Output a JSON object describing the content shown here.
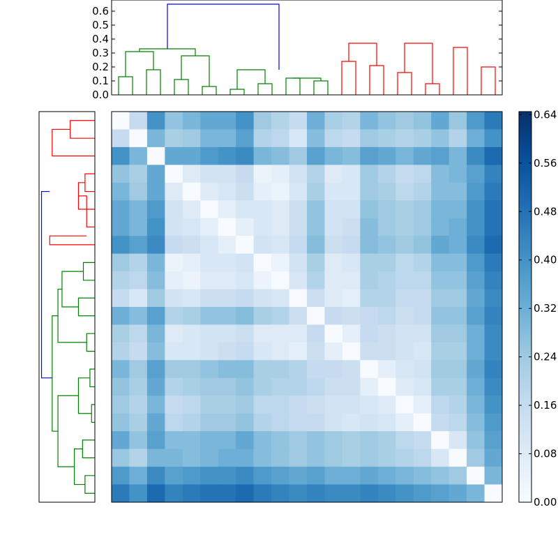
{
  "chart_data": {
    "type": "heatmap",
    "title": "",
    "n": 22,
    "matrix": [
      [
        0.0,
        0.16,
        0.4,
        0.26,
        0.3,
        0.34,
        0.34,
        0.4,
        0.24,
        0.2,
        0.16,
        0.32,
        0.22,
        0.2,
        0.3,
        0.26,
        0.24,
        0.26,
        0.34,
        0.25,
        0.38,
        0.46
      ],
      [
        0.16,
        0.0,
        0.3,
        0.22,
        0.24,
        0.3,
        0.3,
        0.36,
        0.2,
        0.18,
        0.1,
        0.28,
        0.18,
        0.16,
        0.24,
        0.22,
        0.2,
        0.22,
        0.26,
        0.2,
        0.32,
        0.4
      ],
      [
        0.4,
        0.3,
        0.0,
        0.34,
        0.34,
        0.38,
        0.4,
        0.42,
        0.3,
        0.28,
        0.24,
        0.36,
        0.3,
        0.28,
        0.36,
        0.34,
        0.3,
        0.34,
        0.36,
        0.3,
        0.42,
        0.5
      ],
      [
        0.26,
        0.22,
        0.34,
        0.0,
        0.08,
        0.12,
        0.12,
        0.16,
        0.04,
        0.06,
        0.12,
        0.2,
        0.08,
        0.1,
        0.24,
        0.2,
        0.16,
        0.18,
        0.28,
        0.3,
        0.36,
        0.44
      ],
      [
        0.3,
        0.24,
        0.34,
        0.08,
        0.0,
        0.08,
        0.1,
        0.14,
        0.06,
        0.04,
        0.1,
        0.22,
        0.1,
        0.1,
        0.24,
        0.22,
        0.18,
        0.2,
        0.28,
        0.28,
        0.38,
        0.46
      ],
      [
        0.34,
        0.3,
        0.38,
        0.12,
        0.08,
        0.0,
        0.06,
        0.1,
        0.1,
        0.08,
        0.14,
        0.26,
        0.12,
        0.12,
        0.26,
        0.24,
        0.22,
        0.24,
        0.3,
        0.3,
        0.4,
        0.48
      ],
      [
        0.34,
        0.3,
        0.4,
        0.12,
        0.1,
        0.06,
        0.0,
        0.06,
        0.1,
        0.08,
        0.14,
        0.26,
        0.12,
        0.14,
        0.28,
        0.24,
        0.22,
        0.24,
        0.3,
        0.32,
        0.4,
        0.48
      ],
      [
        0.4,
        0.36,
        0.42,
        0.16,
        0.14,
        0.1,
        0.06,
        0.0,
        0.12,
        0.1,
        0.16,
        0.28,
        0.14,
        0.16,
        0.28,
        0.26,
        0.24,
        0.26,
        0.34,
        0.32,
        0.42,
        0.5
      ],
      [
        0.24,
        0.2,
        0.3,
        0.04,
        0.06,
        0.1,
        0.1,
        0.12,
        0.0,
        0.04,
        0.12,
        0.22,
        0.08,
        0.1,
        0.22,
        0.22,
        0.18,
        0.2,
        0.28,
        0.28,
        0.38,
        0.46
      ],
      [
        0.2,
        0.18,
        0.28,
        0.06,
        0.04,
        0.08,
        0.08,
        0.1,
        0.04,
        0.0,
        0.1,
        0.2,
        0.08,
        0.08,
        0.22,
        0.2,
        0.18,
        0.18,
        0.26,
        0.26,
        0.36,
        0.44
      ],
      [
        0.16,
        0.1,
        0.24,
        0.12,
        0.1,
        0.14,
        0.14,
        0.16,
        0.12,
        0.1,
        0.0,
        0.14,
        0.08,
        0.06,
        0.2,
        0.2,
        0.16,
        0.16,
        0.24,
        0.24,
        0.34,
        0.42
      ],
      [
        0.32,
        0.28,
        0.36,
        0.2,
        0.22,
        0.26,
        0.26,
        0.28,
        0.22,
        0.2,
        0.14,
        0.0,
        0.16,
        0.14,
        0.16,
        0.18,
        0.14,
        0.16,
        0.26,
        0.26,
        0.36,
        0.44
      ],
      [
        0.22,
        0.18,
        0.3,
        0.08,
        0.1,
        0.12,
        0.12,
        0.14,
        0.08,
        0.08,
        0.08,
        0.16,
        0.0,
        0.06,
        0.16,
        0.14,
        0.12,
        0.12,
        0.24,
        0.24,
        0.32,
        0.42
      ],
      [
        0.2,
        0.16,
        0.28,
        0.1,
        0.1,
        0.12,
        0.14,
        0.16,
        0.1,
        0.08,
        0.06,
        0.14,
        0.06,
        0.0,
        0.14,
        0.14,
        0.12,
        0.1,
        0.22,
        0.22,
        0.32,
        0.42
      ],
      [
        0.3,
        0.24,
        0.36,
        0.24,
        0.24,
        0.26,
        0.28,
        0.28,
        0.22,
        0.22,
        0.2,
        0.16,
        0.16,
        0.14,
        0.0,
        0.06,
        0.1,
        0.12,
        0.24,
        0.24,
        0.34,
        0.44
      ],
      [
        0.26,
        0.22,
        0.34,
        0.2,
        0.22,
        0.24,
        0.24,
        0.26,
        0.22,
        0.2,
        0.2,
        0.18,
        0.14,
        0.14,
        0.06,
        0.0,
        0.08,
        0.1,
        0.22,
        0.22,
        0.32,
        0.42
      ],
      [
        0.24,
        0.2,
        0.3,
        0.16,
        0.18,
        0.22,
        0.22,
        0.24,
        0.18,
        0.18,
        0.16,
        0.14,
        0.12,
        0.12,
        0.1,
        0.08,
        0.0,
        0.06,
        0.18,
        0.2,
        0.3,
        0.4
      ],
      [
        0.26,
        0.22,
        0.34,
        0.18,
        0.2,
        0.24,
        0.24,
        0.26,
        0.2,
        0.18,
        0.16,
        0.16,
        0.12,
        0.1,
        0.12,
        0.1,
        0.06,
        0.0,
        0.16,
        0.18,
        0.28,
        0.38
      ],
      [
        0.34,
        0.26,
        0.36,
        0.28,
        0.28,
        0.3,
        0.3,
        0.34,
        0.28,
        0.26,
        0.24,
        0.26,
        0.24,
        0.22,
        0.24,
        0.22,
        0.18,
        0.16,
        0.0,
        0.1,
        0.26,
        0.36
      ],
      [
        0.25,
        0.2,
        0.3,
        0.3,
        0.28,
        0.3,
        0.32,
        0.32,
        0.28,
        0.26,
        0.24,
        0.26,
        0.24,
        0.22,
        0.24,
        0.22,
        0.2,
        0.18,
        0.1,
        0.0,
        0.24,
        0.34
      ],
      [
        0.38,
        0.32,
        0.42,
        0.36,
        0.38,
        0.4,
        0.4,
        0.42,
        0.38,
        0.36,
        0.34,
        0.36,
        0.32,
        0.32,
        0.34,
        0.32,
        0.3,
        0.28,
        0.26,
        0.24,
        0.0,
        0.3
      ],
      [
        0.46,
        0.4,
        0.5,
        0.44,
        0.46,
        0.48,
        0.48,
        0.5,
        0.46,
        0.44,
        0.42,
        0.44,
        0.42,
        0.42,
        0.44,
        0.42,
        0.4,
        0.38,
        0.36,
        0.34,
        0.3,
        0.0
      ]
    ],
    "colorbar": {
      "vmin": 0.0,
      "vmax": 0.645,
      "ticks": [
        0.0,
        0.08,
        0.16,
        0.24,
        0.32,
        0.4,
        0.48,
        0.56,
        0.64
      ],
      "tick_labels": [
        "0.00",
        "0.08",
        "0.16",
        "0.24",
        "0.32",
        "0.40",
        "0.48",
        "0.56",
        "0.64"
      ],
      "colormap": "Blues",
      "colormap_low": "#f7fbff",
      "colormap_high": "#08306b"
    },
    "top_dendrogram": {
      "ylim": [
        0,
        0.68
      ],
      "ticks": [
        0.0,
        0.1,
        0.2,
        0.3,
        0.4,
        0.5,
        0.6
      ],
      "tick_labels": [
        "0.0",
        "0.1",
        "0.2",
        "0.3",
        "0.4",
        "0.5",
        "0.6"
      ],
      "links": [
        {
          "left": [
            0,
            0.0
          ],
          "right": [
            1,
            0.0
          ],
          "height": 0.13,
          "color": "green"
        },
        {
          "left": [
            2,
            0.0
          ],
          "right": [
            3,
            0.0
          ],
          "height": 0.18,
          "color": "green"
        },
        {
          "left": [
            4,
            0.0
          ],
          "right": [
            5,
            0.0
          ],
          "height": 0.11,
          "color": "green"
        },
        {
          "left": [
            6,
            0.0
          ],
          "right": [
            7,
            0.0
          ],
          "height": 0.06,
          "color": "green"
        },
        {
          "left": [
            8,
            0.0
          ],
          "right": [
            9,
            0.0
          ],
          "height": 0.04,
          "color": "green"
        },
        {
          "left": [
            10,
            0.0
          ],
          "right": [
            11,
            0.0
          ],
          "height": 0.08,
          "color": "green"
        },
        {
          "left": [
            12,
            0.0
          ],
          "right": [
            13,
            0.0
          ],
          "height": 0.12,
          "color": "green"
        },
        {
          "left": [
            14,
            0.0
          ],
          "right": [
            15,
            0.0
          ],
          "height": 0.1,
          "color": "green"
        },
        {
          "left": [
            16,
            0.0
          ],
          "right": [
            17,
            0.0
          ],
          "height": 0.24,
          "color": "red"
        },
        {
          "left": [
            18,
            0.0
          ],
          "right": [
            19,
            0.0
          ],
          "height": 0.21,
          "color": "red"
        },
        {
          "left": [
            20,
            0.0
          ],
          "right": [
            21,
            0.0
          ],
          "height": 0.16,
          "color": "red"
        },
        {
          "left": [
            22,
            0.0
          ],
          "right": [
            23,
            0.0
          ],
          "height": 0.08,
          "color": "red"
        },
        {
          "left": [
            24,
            0.0
          ],
          "right": [
            25,
            0.0
          ],
          "height": 0.34,
          "color": "red"
        },
        {
          "left": [
            26,
            0.0
          ],
          "right": [
            27,
            0.0
          ],
          "height": 0.2,
          "color": "red"
        },
        {
          "left": [
            0.5,
            0.13
          ],
          "right": [
            2.5,
            0.18
          ],
          "height": 0.31,
          "color": "green"
        },
        {
          "left": [
            4.5,
            0.11
          ],
          "right": [
            6.5,
            0.06
          ],
          "height": 0.28,
          "color": "green"
        },
        {
          "left": [
            8.5,
            0.04
          ],
          "right": [
            10.5,
            0.08
          ],
          "height": 0.18,
          "color": "green"
        },
        {
          "left": [
            12.5,
            0.12
          ],
          "right": [
            14.5,
            0.1
          ],
          "height": 0.12,
          "color": "green"
        },
        {
          "left": [
            16.5,
            0.24
          ],
          "right": [
            18.5,
            0.21
          ],
          "height": 0.37,
          "color": "red"
        },
        {
          "left": [
            20.5,
            0.16
          ],
          "right": [
            22.5,
            0.08
          ],
          "height": 0.37,
          "color": "red"
        },
        {
          "left": [
            1.5,
            0.31
          ],
          "right": [
            5.5,
            0.28
          ],
          "height": 0.33,
          "color": "green"
        },
        {
          "left": [
            3.5,
            0.33
          ],
          "right": [
            11.5,
            0.18
          ],
          "height": 0.65,
          "color": "blue"
        }
      ]
    },
    "left_dendrogram": {
      "xlim": [
        0,
        0.68
      ],
      "links": [
        {
          "top": [
            0,
            0.0
          ],
          "bottom": [
            1,
            0.0
          ],
          "height": 0.3,
          "color": "red"
        },
        {
          "top": [
            0.5,
            0.3
          ],
          "bottom": [
            2,
            0.0
          ],
          "height": 0.52,
          "color": "red"
        },
        {
          "top": [
            3,
            0.0
          ],
          "bottom": [
            4,
            0.0
          ],
          "height": 0.12,
          "color": "red"
        },
        {
          "top": [
            3.5,
            0.12
          ],
          "bottom": [
            5,
            0.0
          ],
          "height": 0.2,
          "color": "red"
        },
        {
          "top": [
            4.25,
            0.2
          ],
          "bottom": [
            6,
            0.0
          ],
          "height": 0.1,
          "color": "red"
        },
        {
          "top": [
            6.5,
            0.1
          ],
          "bottom": [
            7,
            0.0
          ],
          "height": 0.55,
          "color": "red"
        },
        {
          "top": [
            8,
            0.0
          ],
          "bottom": [
            9,
            0.0
          ],
          "height": 0.14,
          "color": "green"
        },
        {
          "top": [
            10,
            0.0
          ],
          "bottom": [
            11,
            0.0
          ],
          "height": 0.2,
          "color": "green"
        },
        {
          "top": [
            8.5,
            0.14
          ],
          "bottom": [
            10.5,
            0.2
          ],
          "height": 0.4,
          "color": "green"
        },
        {
          "top": [
            12,
            0.0
          ],
          "bottom": [
            13,
            0.0
          ],
          "height": 0.1,
          "color": "green"
        },
        {
          "top": [
            14,
            0.0
          ],
          "bottom": [
            15,
            0.0
          ],
          "height": 0.06,
          "color": "green"
        },
        {
          "top": [
            16,
            0.0
          ],
          "bottom": [
            17,
            0.0
          ],
          "height": 0.04,
          "color": "green"
        },
        {
          "top": [
            18,
            0.0
          ],
          "bottom": [
            19,
            0.0
          ],
          "height": 0.15,
          "color": "green"
        },
        {
          "top": [
            20,
            0.0
          ],
          "bottom": [
            21,
            0.0
          ],
          "height": 0.12,
          "color": "green"
        },
        {
          "top": [
            9.5,
            0.4
          ],
          "bottom": [
            12.5,
            0.1
          ],
          "height": 0.45,
          "color": "green"
        },
        {
          "top": [
            14.5,
            0.06
          ],
          "bottom": [
            16.5,
            0.04
          ],
          "height": 0.2,
          "color": "green"
        },
        {
          "top": [
            18.5,
            0.15
          ],
          "bottom": [
            20.5,
            0.12
          ],
          "height": 0.25,
          "color": "green"
        },
        {
          "top": [
            15.5,
            0.2
          ],
          "bottom": [
            19.5,
            0.25
          ],
          "height": 0.45,
          "color": "green"
        },
        {
          "top": [
            11,
            0.45
          ],
          "bottom": [
            17.5,
            0.45
          ],
          "height": 0.52,
          "color": "green"
        },
        {
          "top": [
            4,
            0.55
          ],
          "bottom": [
            14.5,
            0.52
          ],
          "height": 0.65,
          "color": "blue"
        }
      ]
    }
  }
}
